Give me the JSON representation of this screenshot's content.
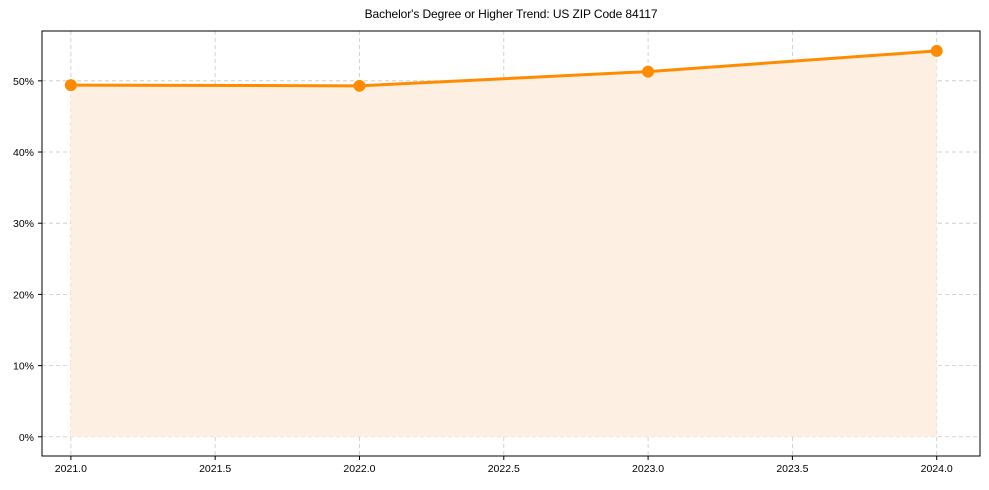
{
  "chart_data": {
    "type": "line",
    "title": "Bachelor's Degree or Higher Trend: US ZIP Code 84117",
    "xlabel": "",
    "ylabel": "",
    "x": [
      2021,
      2022,
      2023,
      2024
    ],
    "series": [
      {
        "name": "Bachelor's Degree or Higher",
        "values": [
          49.4,
          49.3,
          51.3,
          54.2
        ],
        "color": "#ff8c00",
        "fill": "#fdf0e3",
        "marker": "circle"
      }
    ],
    "xlim": [
      2020.9,
      2024.15
    ],
    "ylim": [
      -2.7,
      57
    ],
    "x_ticks": [
      "2021.0",
      "2021.5",
      "2022.0",
      "2022.5",
      "2023.0",
      "2023.5",
      "2024.0"
    ],
    "x_tick_values": [
      2021.0,
      2021.5,
      2022.0,
      2022.5,
      2023.0,
      2023.5,
      2024.0
    ],
    "y_ticks": [
      "0%",
      "10%",
      "20%",
      "30%",
      "40%",
      "50%"
    ],
    "y_tick_values": [
      0,
      10,
      20,
      30,
      40,
      50
    ],
    "grid": true,
    "grid_style": "dashed",
    "legend": null
  }
}
